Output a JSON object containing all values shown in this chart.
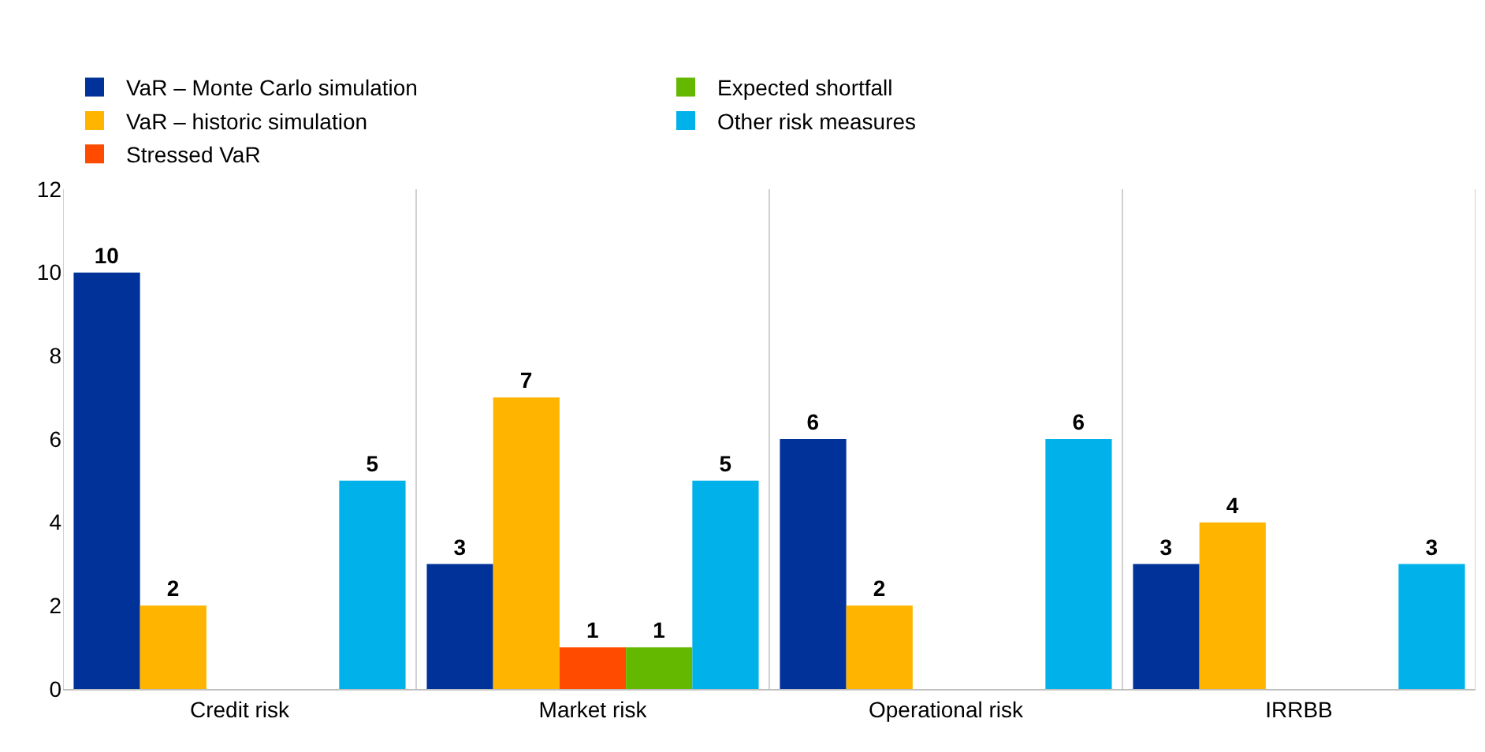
{
  "chart_data": {
    "type": "bar",
    "categories": [
      "Credit risk",
      "Market risk",
      "Operational risk",
      "IRRBB"
    ],
    "series": [
      {
        "name": "VaR – Monte Carlo simulation",
        "color": "#003299",
        "values": [
          10,
          3,
          6,
          3
        ]
      },
      {
        "name": "VaR – historic simulation",
        "color": "#ffb400",
        "values": [
          2,
          7,
          2,
          4
        ]
      },
      {
        "name": "Stressed VaR",
        "color": "#ff4b00",
        "values": [
          null,
          1,
          null,
          null
        ]
      },
      {
        "name": "Expected shortfall",
        "color": "#65b800",
        "values": [
          null,
          1,
          null,
          null
        ]
      },
      {
        "name": "Other risk measures",
        "color": "#00b1ea",
        "values": [
          5,
          5,
          6,
          3
        ]
      }
    ],
    "ylim": [
      0,
      12
    ],
    "yticks": [
      0,
      2,
      4,
      6,
      8,
      10,
      12
    ],
    "grid": "x",
    "legend": "top left",
    "data_labels": true
  }
}
